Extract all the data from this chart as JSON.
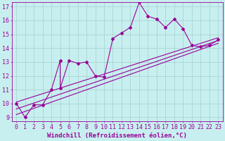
{
  "xlabel": "Windchill (Refroidissement éolien,°C)",
  "xlim": [
    -0.5,
    23.5
  ],
  "ylim": [
    8.7,
    17.3
  ],
  "xticks": [
    0,
    1,
    2,
    3,
    4,
    5,
    6,
    7,
    8,
    9,
    10,
    11,
    12,
    13,
    14,
    15,
    16,
    17,
    18,
    19,
    20,
    21,
    22,
    23
  ],
  "yticks": [
    9,
    10,
    11,
    12,
    13,
    14,
    15,
    16,
    17
  ],
  "background_color": "#c8efef",
  "grid_color": "#aad4d4",
  "line_color": "#990099",
  "data_main": {
    "x": [
      0,
      1,
      2,
      3,
      4,
      5,
      5,
      6,
      7,
      8,
      9,
      10,
      11,
      12,
      13,
      14,
      15,
      16,
      17,
      18,
      19,
      20,
      21,
      22,
      23
    ],
    "y": [
      10.0,
      9.0,
      9.9,
      9.9,
      11.0,
      13.1,
      11.1,
      13.1,
      12.9,
      13.0,
      12.0,
      11.9,
      14.7,
      15.1,
      15.5,
      17.3,
      16.3,
      16.1,
      15.5,
      16.1,
      15.4,
      14.2,
      14.1,
      14.2,
      14.6
    ]
  },
  "regression_lines": [
    {
      "x": [
        0,
        23
      ],
      "y": [
        9.2,
        14.35
      ]
    },
    {
      "x": [
        0,
        23
      ],
      "y": [
        9.6,
        14.55
      ]
    },
    {
      "x": [
        0,
        23
      ],
      "y": [
        10.1,
        14.75
      ]
    }
  ],
  "fontsize_xlabel": 6.5,
  "fontsize_ticks": 6,
  "marker": "D",
  "marker_size": 2.0,
  "linewidth_main": 0.8,
  "linewidth_reg": 0.8
}
